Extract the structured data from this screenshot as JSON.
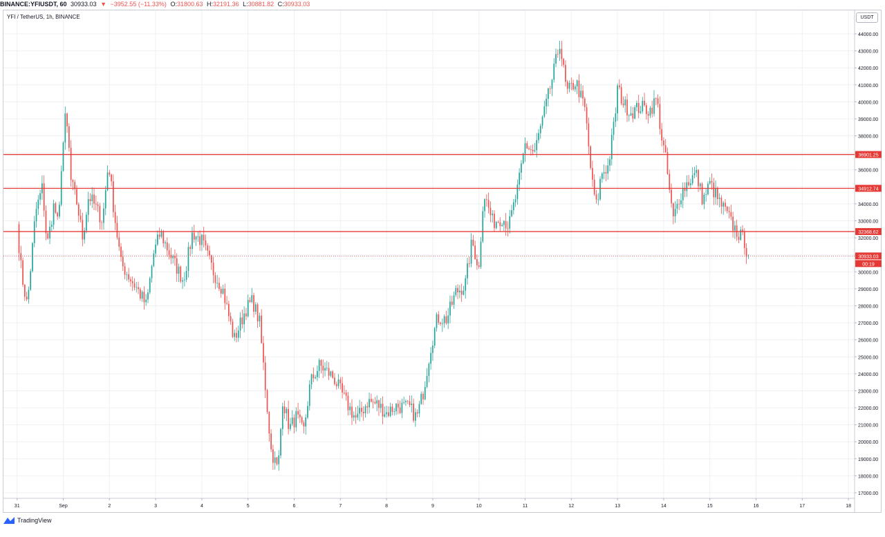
{
  "header": {
    "symbol": "BINANCE:YFIUSDT, 60",
    "last": "30933.03",
    "arrow": "▼",
    "change": "−3952.55 (−11.33%)",
    "o_label": "O:",
    "o_value": "31800.63",
    "h_label": "H:",
    "h_value": "32191.36",
    "l_label": "L:",
    "l_value": "30881.82",
    "c_label": "C:",
    "c_value": "30933.03"
  },
  "legend": {
    "title": "YFI / TetherUS, 1h, BINANCE"
  },
  "currency_badge": "USDT",
  "footer": {
    "brand": "TradingView"
  },
  "colors": {
    "up": "#26a69a",
    "down": "#ef5350",
    "hline": "#e53935",
    "grid": "#eef0f3"
  },
  "chart_data": {
    "type": "candlestick",
    "ylim": [
      16500,
      45000
    ],
    "y_ticks": [
      17000,
      18000,
      19000,
      20000,
      21000,
      22000,
      23000,
      24000,
      25000,
      26000,
      27000,
      28000,
      29000,
      30000,
      31000,
      32000,
      33000,
      34000,
      35000,
      36000,
      37000,
      38000,
      39000,
      40000,
      41000,
      42000,
      43000,
      44000
    ],
    "x_ticks": [
      "31",
      "Sep",
      "2",
      "3",
      "4",
      "5",
      "6",
      "7",
      "8",
      "9",
      "10",
      "11",
      "12",
      "13",
      "14",
      "15",
      "16",
      "17",
      "18"
    ],
    "horizontal_lines": [
      {
        "value": 36901.25,
        "label": "36901.25"
      },
      {
        "value": 34912.74,
        "label": "34912.74"
      },
      {
        "value": 32368.62,
        "label": "32368.62"
      }
    ],
    "last_price": {
      "value": 30933.03,
      "label": "30933.03",
      "countdown": "00:19"
    },
    "points_per_day": 24,
    "close_path": [
      [
        -1.0,
        32800
      ],
      [
        -0.9,
        29800
      ],
      [
        -0.78,
        28000
      ],
      [
        -0.6,
        33500
      ],
      [
        -0.45,
        35000
      ],
      [
        -0.35,
        31500
      ],
      [
        -0.2,
        34000
      ],
      [
        -0.1,
        32500
      ],
      [
        -0.05,
        36000
      ],
      [
        0.05,
        39200
      ],
      [
        0.12,
        37500
      ],
      [
        0.15,
        35500
      ],
      [
        0.3,
        34000
      ],
      [
        0.42,
        32000
      ],
      [
        0.55,
        34500
      ],
      [
        0.7,
        33800
      ],
      [
        0.85,
        33000
      ],
      [
        0.98,
        36500
      ],
      [
        1.1,
        33500
      ],
      [
        1.25,
        30500
      ],
      [
        1.45,
        29600
      ],
      [
        1.6,
        29000
      ],
      [
        1.8,
        28000
      ],
      [
        1.95,
        31000
      ],
      [
        2.1,
        32300
      ],
      [
        2.35,
        30800
      ],
      [
        2.6,
        29500
      ],
      [
        2.8,
        32300
      ],
      [
        3.0,
        31800
      ],
      [
        3.25,
        30000
      ],
      [
        3.45,
        29000
      ],
      [
        3.7,
        26000
      ],
      [
        3.95,
        27800
      ],
      [
        4.1,
        28300
      ],
      [
        4.25,
        27000
      ],
      [
        4.5,
        19500
      ],
      [
        4.65,
        18300
      ],
      [
        4.75,
        22500
      ],
      [
        4.9,
        20800
      ],
      [
        5.05,
        21500
      ],
      [
        5.2,
        20500
      ],
      [
        5.35,
        23500
      ],
      [
        5.55,
        24500
      ],
      [
        5.85,
        23800
      ],
      [
        6.0,
        23000
      ],
      [
        6.15,
        22200
      ],
      [
        6.35,
        21300
      ],
      [
        6.6,
        22400
      ],
      [
        6.8,
        22200
      ],
      [
        7.0,
        21700
      ],
      [
        7.2,
        22100
      ],
      [
        7.5,
        22000
      ],
      [
        7.65,
        21400
      ],
      [
        7.8,
        23000
      ],
      [
        7.95,
        25500
      ],
      [
        8.1,
        27300
      ],
      [
        8.3,
        27200
      ],
      [
        8.5,
        28800
      ],
      [
        8.7,
        29200
      ],
      [
        8.85,
        31800
      ],
      [
        9.0,
        30200
      ],
      [
        9.1,
        34700
      ],
      [
        9.3,
        32900
      ],
      [
        9.5,
        33200
      ],
      [
        9.65,
        32700
      ],
      [
        9.85,
        35000
      ],
      [
        10.0,
        37500
      ],
      [
        10.2,
        37000
      ],
      [
        10.4,
        39200
      ],
      [
        10.6,
        41500
      ],
      [
        10.75,
        43500
      ],
      [
        10.9,
        40500
      ],
      [
        11.1,
        41200
      ],
      [
        11.3,
        39500
      ],
      [
        11.45,
        35200
      ],
      [
        11.55,
        33800
      ],
      [
        11.65,
        35800
      ],
      [
        11.8,
        36200
      ],
      [
        11.95,
        39200
      ],
      [
        12.0,
        40800
      ],
      [
        12.15,
        39800
      ],
      [
        12.3,
        39400
      ],
      [
        12.5,
        39700
      ],
      [
        12.7,
        39500
      ],
      [
        12.85,
        40200
      ],
      [
        12.95,
        38000
      ],
      [
        13.05,
        36500
      ],
      [
        13.2,
        33000
      ],
      [
        13.35,
        34500
      ],
      [
        13.5,
        35200
      ],
      [
        13.7,
        35800
      ],
      [
        13.85,
        34200
      ],
      [
        14.0,
        35200
      ],
      [
        14.2,
        34100
      ],
      [
        14.35,
        33500
      ],
      [
        14.5,
        32700
      ],
      [
        14.6,
        32300
      ],
      [
        14.75,
        31800
      ],
      [
        14.82,
        30933
      ]
    ]
  }
}
